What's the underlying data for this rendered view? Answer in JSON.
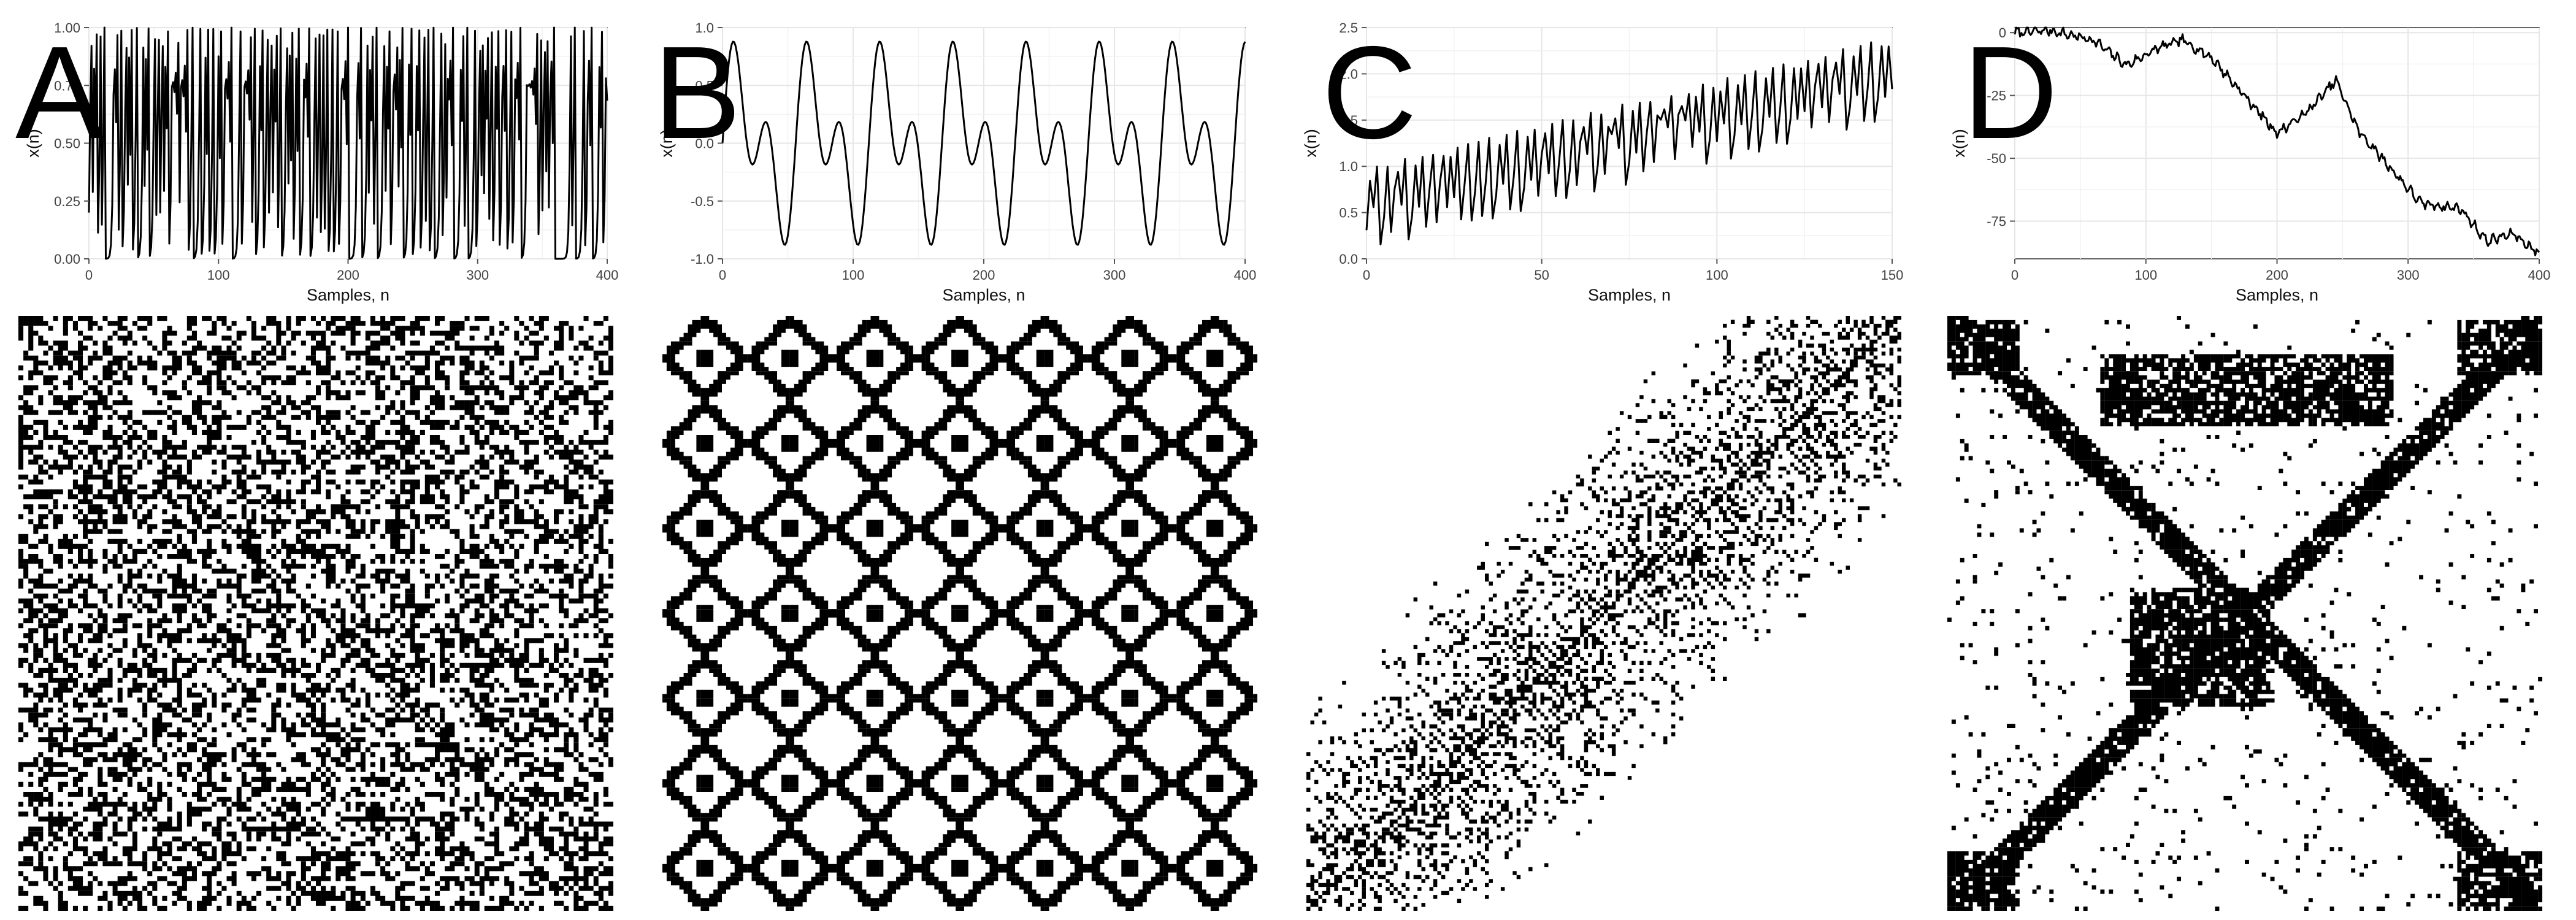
{
  "panels": [
    {
      "letter": "A"
    },
    {
      "letter": "B"
    },
    {
      "letter": "C"
    },
    {
      "letter": "D"
    }
  ],
  "chart_data": [
    {
      "panel": "A",
      "type": "line",
      "xlabel": "Samples, n",
      "ylabel": "x(n)",
      "xlim": [
        0,
        400
      ],
      "ylim": [
        0,
        1
      ],
      "xticks": [
        0,
        100,
        200,
        300,
        400
      ],
      "yticks": [
        "0.00",
        "0.25",
        "0.50",
        "0.75",
        "1.00"
      ],
      "generator": "logistic",
      "params": {
        "r": 4.0,
        "x0": 0.2,
        "n": 400
      },
      "grid": true,
      "recurrence_plot": {
        "visible": true,
        "pattern": "chaotic"
      }
    },
    {
      "panel": "B",
      "type": "line",
      "xlabel": "Samples, n",
      "ylabel": "x(n)",
      "xlim": [
        0,
        400
      ],
      "ylim": [
        -1,
        1
      ],
      "xticks": [
        0,
        100,
        200,
        300,
        400
      ],
      "yticks": [
        "-1.0",
        "-0.5",
        "0.0",
        "0.5",
        "1.0"
      ],
      "generator": "two-sine",
      "params": {
        "period1": 56,
        "period2": 28,
        "n": 400
      },
      "grid": true,
      "recurrence_plot": {
        "visible": true,
        "pattern": "periodic"
      }
    },
    {
      "panel": "C",
      "type": "line",
      "xlabel": "Samples, n",
      "ylabel": "x(n)",
      "xlim": [
        0,
        150
      ],
      "ylim": [
        0,
        2.5
      ],
      "xticks": [
        0,
        50,
        100,
        150
      ],
      "yticks": [
        "0.0",
        "0.5",
        "1.0",
        "1.5",
        "2.0",
        "2.5"
      ],
      "generator": "logistic-plus-trend",
      "params": {
        "r": 3.9,
        "x0": 0.31,
        "trend_per_sample": 0.0095,
        "n": 150
      },
      "grid": true,
      "recurrence_plot": {
        "visible": true,
        "pattern": "drift"
      }
    },
    {
      "panel": "D",
      "type": "line",
      "xlabel": "Samples, n",
      "ylabel": "x(n)",
      "xlim": [
        0,
        400
      ],
      "ylim": [
        -90,
        2
      ],
      "xticks": [
        0,
        100,
        200,
        300,
        400
      ],
      "yticks": [
        "0",
        "-25",
        "-50",
        "-75"
      ],
      "generator": "random-walk",
      "params": {
        "n": 400,
        "seed": 7
      },
      "anchors": [
        [
          0,
          0
        ],
        [
          25,
          1
        ],
        [
          60,
          -3
        ],
        [
          85,
          -13
        ],
        [
          110,
          -6
        ],
        [
          128,
          -3
        ],
        [
          150,
          -10
        ],
        [
          175,
          -25
        ],
        [
          200,
          -40
        ],
        [
          222,
          -32
        ],
        [
          245,
          -19
        ],
        [
          262,
          -39
        ],
        [
          290,
          -56
        ],
        [
          310,
          -68
        ],
        [
          340,
          -70
        ],
        [
          360,
          -83
        ],
        [
          380,
          -80
        ],
        [
          400,
          -88
        ]
      ],
      "grid": true,
      "recurrence_plot": {
        "visible": true,
        "pattern": "nonstationary"
      }
    }
  ]
}
